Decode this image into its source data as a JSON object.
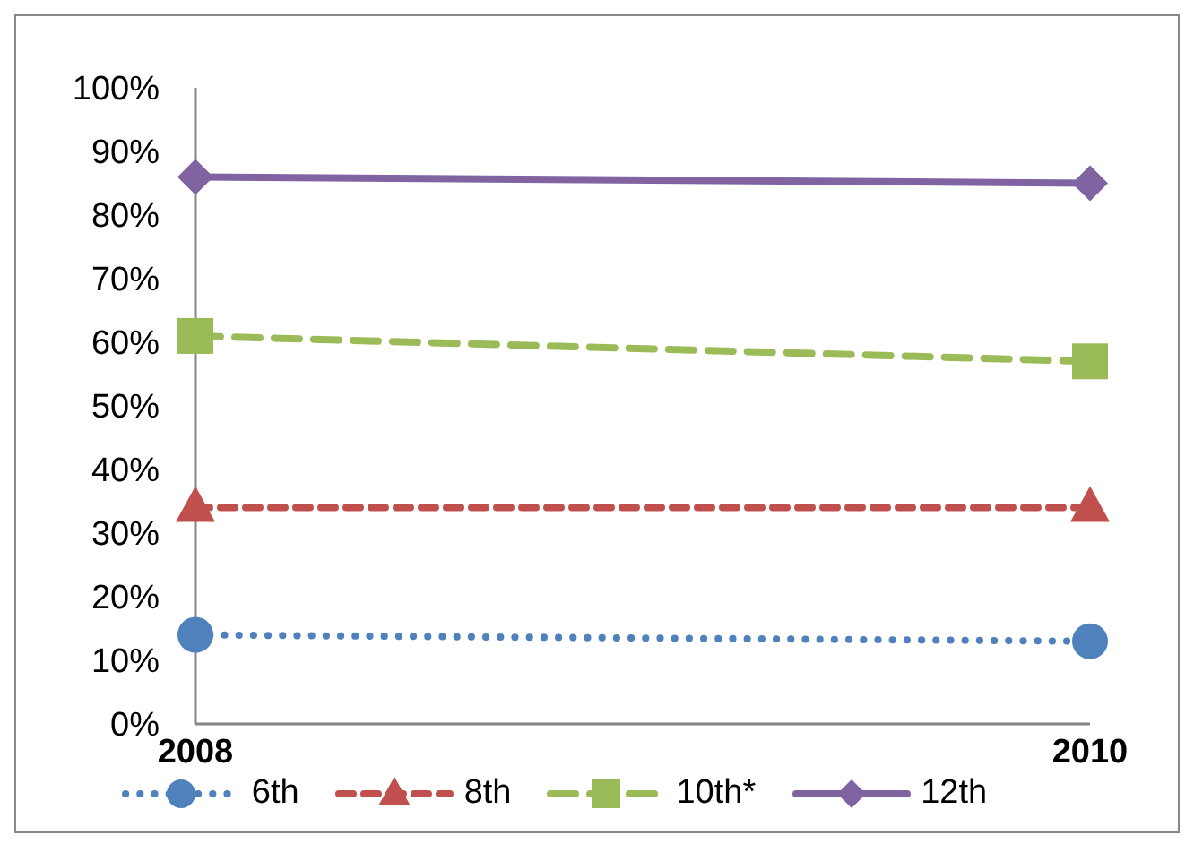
{
  "chart_data": {
    "type": "line",
    "categories": [
      "2008",
      "2010"
    ],
    "series": [
      {
        "name": "6th",
        "color": "#4f81bd",
        "values": [
          14,
          13
        ],
        "line_style": "dotted",
        "marker": "circle"
      },
      {
        "name": "8th",
        "color": "#c0504d",
        "values": [
          34,
          34
        ],
        "line_style": "dashed",
        "marker": "triangle"
      },
      {
        "name": "10th*",
        "color": "#9bbb59",
        "values": [
          61,
          57
        ],
        "line_style": "dashed",
        "marker": "square"
      },
      {
        "name": "12th",
        "color": "#8064a2",
        "values": [
          86,
          85
        ],
        "line_style": "solid",
        "marker": "diamond"
      }
    ],
    "ylim": [
      0,
      100
    ],
    "yticks": [
      {
        "value": 0,
        "label": "0%"
      },
      {
        "value": 10,
        "label": "10%"
      },
      {
        "value": 20,
        "label": "20%"
      },
      {
        "value": 30,
        "label": "30%"
      },
      {
        "value": 40,
        "label": "40%"
      },
      {
        "value": 50,
        "label": "50%"
      },
      {
        "value": 60,
        "label": "60%"
      },
      {
        "value": 70,
        "label": "70%"
      },
      {
        "value": 80,
        "label": "80%"
      },
      {
        "value": 90,
        "label": "90%"
      },
      {
        "value": 100,
        "label": "100%"
      }
    ],
    "grid": false,
    "legend": "bottom"
  }
}
